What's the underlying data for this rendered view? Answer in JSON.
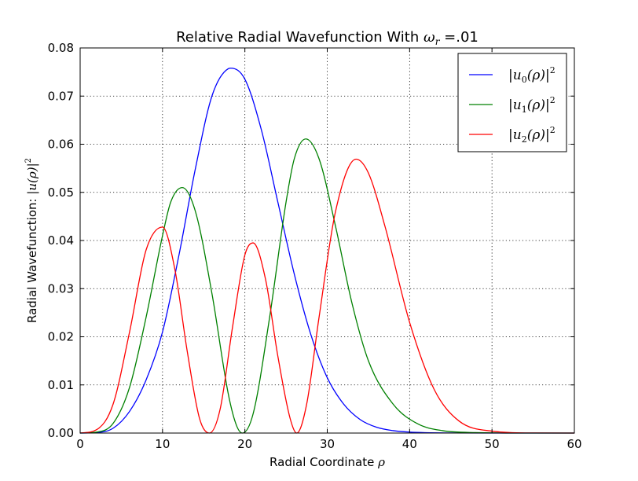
{
  "chart_data": {
    "type": "line",
    "title": "Relative Radial Wavefunction With ω_r =.01",
    "title_parts": {
      "prefix": "Relative Radial Wavefunction With ",
      "symbol": "ω",
      "symbol_sub": "r",
      "suffix": " =.01"
    },
    "xlabel": "Radial Coordinate ρ",
    "xlabel_parts": {
      "text": "Radial Coordinate ",
      "symbol": "ρ"
    },
    "ylabel": "Radial Wavefunction: |u(ρ)|²",
    "ylabel_parts": {
      "text": "Radial Wavefunction: ",
      "math": "|u(ρ)|",
      "sup": "2"
    },
    "xlim": [
      0,
      60
    ],
    "ylim": [
      0,
      0.08
    ],
    "xticks": [
      0,
      10,
      20,
      30,
      40,
      50,
      60
    ],
    "xtick_labels": [
      "0",
      "10",
      "20",
      "30",
      "40",
      "50",
      "60"
    ],
    "yticks": [
      0,
      0.01,
      0.02,
      0.03,
      0.04,
      0.05,
      0.06,
      0.07,
      0.08
    ],
    "ytick_labels": [
      "0.00",
      "0.01",
      "0.02",
      "0.03",
      "0.04",
      "0.05",
      "0.06",
      "0.07",
      "0.08"
    ],
    "grid": true,
    "legend_position": "top-right",
    "series": [
      {
        "name": "|u₀(ρ)|²",
        "label_parts": {
          "base": "u",
          "sub": "0"
        },
        "color": "#0000ff",
        "x": [
          0,
          2,
          4,
          6,
          8,
          10,
          12,
          14,
          16,
          18,
          18.3,
          20,
          22,
          24,
          26,
          28,
          30,
          32,
          34,
          36,
          38,
          40,
          45,
          50,
          55,
          60
        ],
        "y": [
          0,
          0.0001,
          0.001,
          0.0045,
          0.011,
          0.021,
          0.037,
          0.055,
          0.07,
          0.0757,
          0.0758,
          0.0735,
          0.063,
          0.048,
          0.033,
          0.0205,
          0.0115,
          0.006,
          0.0028,
          0.0012,
          0.0005,
          0.0002,
          2e-05,
          0,
          0,
          0
        ]
      },
      {
        "name": "|u₁(ρ)|²",
        "label_parts": {
          "base": "u",
          "sub": "1"
        },
        "color": "#008000",
        "x": [
          0,
          2,
          4,
          6,
          8,
          10,
          11,
          12.4,
          14,
          16,
          18,
          19,
          19.7,
          21,
          23,
          25,
          26,
          27.4,
          29,
          31,
          33,
          35,
          38,
          41,
          44,
          48,
          55,
          60
        ],
        "y": [
          0,
          0.0002,
          0.002,
          0.0095,
          0.024,
          0.041,
          0.048,
          0.051,
          0.046,
          0.029,
          0.008,
          0.0015,
          0,
          0.004,
          0.024,
          0.048,
          0.057,
          0.0611,
          0.057,
          0.043,
          0.027,
          0.015,
          0.006,
          0.0019,
          0.0005,
          0.0001,
          0,
          0
        ]
      },
      {
        "name": "|u₂(ρ)|²",
        "label_parts": {
          "base": "u",
          "sub": "2"
        },
        "color": "#ff0000",
        "x": [
          0,
          2,
          4,
          6,
          8,
          10,
          11.5,
          13,
          14.5,
          15.7,
          17,
          18.5,
          20,
          21,
          22.5,
          24,
          25.5,
          26.3,
          27.5,
          29,
          31,
          33.5,
          35,
          37,
          40,
          43,
          46,
          50,
          55,
          60
        ],
        "y": [
          0,
          0.0007,
          0.006,
          0.021,
          0.038,
          0.0428,
          0.034,
          0.017,
          0.003,
          0,
          0.005,
          0.022,
          0.037,
          0.0395,
          0.032,
          0.016,
          0.003,
          0,
          0.006,
          0.024,
          0.046,
          0.0569,
          0.054,
          0.043,
          0.023,
          0.009,
          0.0025,
          0.0004,
          2e-05,
          0
        ]
      }
    ]
  }
}
